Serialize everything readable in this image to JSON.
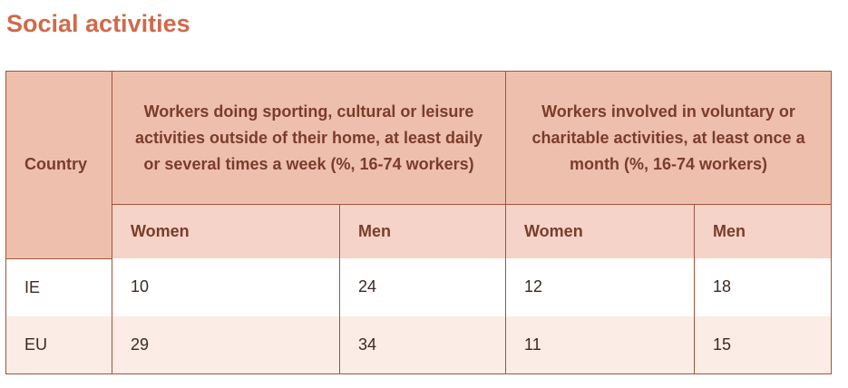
{
  "page": {
    "title": "Social activities"
  },
  "table": {
    "country_header": "Country",
    "groups": [
      "Workers doing sporting, cultural or leisure activities outside of their home, at least daily or several times a week (%, 16-74 workers)",
      "Workers involved in voluntary or charitable activities, at least once a month (%, 16-74 workers)"
    ],
    "subheaders": [
      "Women",
      "Men",
      "Women",
      "Men"
    ],
    "rows": [
      {
        "country": "IE",
        "values": [
          "10",
          "24",
          "12",
          "18"
        ]
      },
      {
        "country": "EU",
        "values": [
          "29",
          "34",
          "11",
          "15"
        ]
      }
    ]
  },
  "colors": {
    "title": "#d06a4a",
    "header_bg": "#efbfae",
    "subheader_bg": "#f6d3c8",
    "alt_row_bg": "#fbece6",
    "border": "#a0553a"
  }
}
